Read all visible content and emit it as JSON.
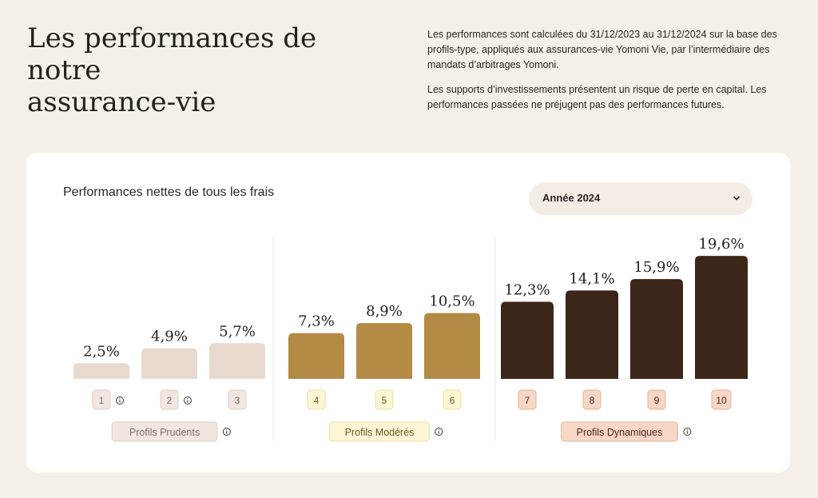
{
  "header": {
    "title_line1": "Les performances de notre",
    "title_line2": "assurance-vie",
    "para1": "Les performances sont calculées du 31/12/2023 au 31/12/2024 sur la base des profils-type, appliqués aux assurances-vie Yomoni Vie, par l’intermédiaire des mandats d’arbitrages Yomoni.",
    "para2": "Les supports d’investissements présentent un risque de perte en capital. Les performances passées ne préjugent pas des performances futures."
  },
  "card": {
    "title": "Performances nettes de tous les frais",
    "year_select": {
      "selected": "Année 2024",
      "icon": "chevron-down-icon"
    }
  },
  "chart_data": {
    "type": "bar",
    "title": "Performances nettes de tous les frais",
    "unit": "%",
    "categories": [
      "1",
      "2",
      "3",
      "4",
      "5",
      "6",
      "7",
      "8",
      "9",
      "10"
    ],
    "values": [
      2.5,
      4.9,
      5.7,
      7.3,
      8.9,
      10.5,
      12.3,
      14.1,
      15.9,
      19.6
    ],
    "value_labels": [
      "2,5%",
      "4,9%",
      "5,7%",
      "7,3%",
      "8,9%",
      "10,5%",
      "12,3%",
      "14,1%",
      "15,9%",
      "19,6%"
    ],
    "info_icons_on": [
      "1",
      "2"
    ],
    "groups": [
      {
        "name": "Profils Prudents",
        "profiles": [
          "1",
          "2",
          "3"
        ],
        "bar_color": "#e8d9cf",
        "tag_bg": "#f1e7e0",
        "tag_border": "#dccdc3",
        "tag_text": "#7a6f69"
      },
      {
        "name": "Profils Modérés",
        "profiles": [
          "4",
          "5",
          "6"
        ],
        "bar_color": "#b38b45",
        "tag_bg": "#fdf6d5",
        "tag_border": "#ecdf9c",
        "tag_text": "#6b5a22"
      },
      {
        "name": "Profils Dynamiques",
        "profiles": [
          "7",
          "8",
          "9",
          "10"
        ],
        "bar_color": "#3c2519",
        "tag_bg": "#f7d6c6",
        "tag_border": "#e2b39e",
        "tag_text": "#4a2a1c"
      }
    ]
  }
}
